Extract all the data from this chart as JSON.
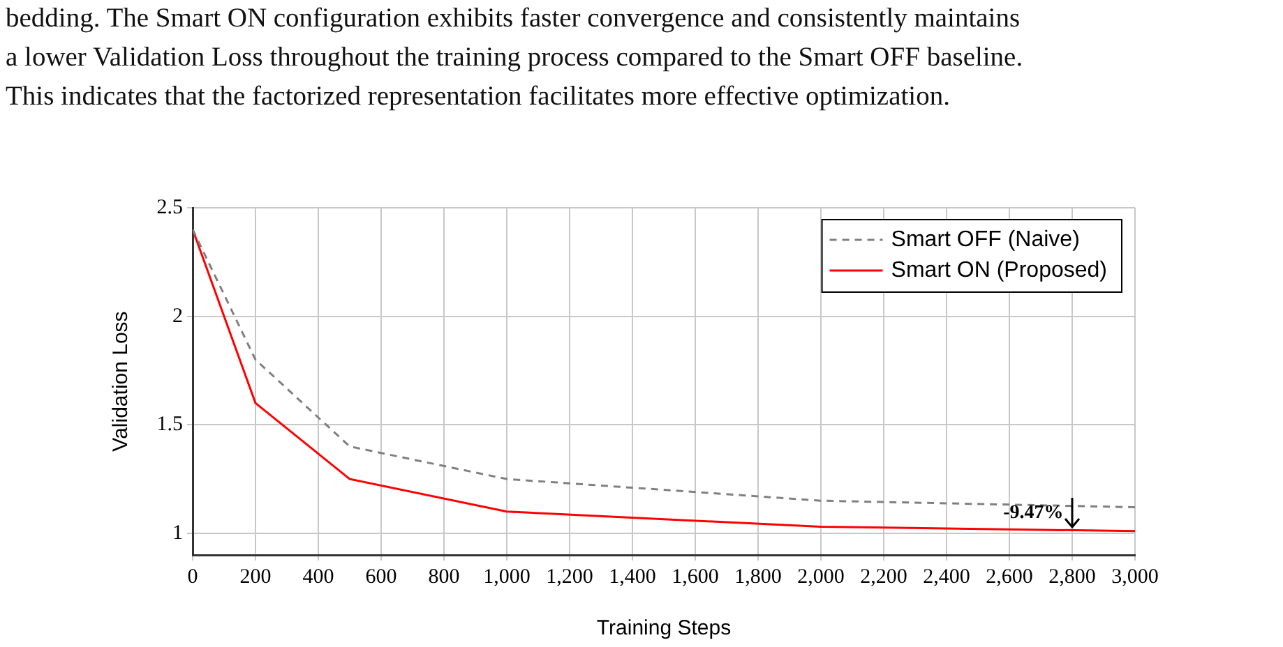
{
  "chart_data": {
    "type": "line",
    "xlabel": "Training Steps",
    "ylabel": "Validation Loss",
    "annotations": [
      "bedding. The Smart ON configuration exhibits faster convergence and consistently maintains",
      "a lower Validation Loss throughout the training process compared to the Smart OFF baseline.",
      "This indicates that the factorized representation facilitates more effective optimization.",
      "-9.47%"
    ],
    "x": [
      0,
      200,
      500,
      1000,
      2000,
      3000
    ],
    "series": [
      {
        "name": "Smart OFF (Naive)",
        "color": "#808080",
        "line_style": "dashed",
        "values": [
          2.4,
          1.8,
          1.4,
          1.25,
          1.15,
          1.12
        ]
      },
      {
        "name": "Smart ON (Proposed)",
        "color": "#ff0000",
        "line_style": "solid",
        "values": [
          2.4,
          1.6,
          1.25,
          1.1,
          1.03,
          1.01
        ]
      }
    ],
    "xlim": [
      0,
      3000
    ],
    "ylim": [
      0.9,
      2.5
    ],
    "xticks": [
      0,
      200,
      400,
      600,
      800,
      {
        "value": 1000,
        "label": "1,000"
      },
      {
        "value": 1200,
        "label": "1,200"
      },
      {
        "value": 1400,
        "label": "1,400"
      },
      {
        "value": 1600,
        "label": "1,600"
      },
      {
        "value": 1800,
        "label": "1,800"
      },
      {
        "value": 2000,
        "label": "2,000"
      },
      {
        "value": 2200,
        "label": "2,200"
      },
      {
        "value": 2400,
        "label": "2,400"
      },
      {
        "value": 2600,
        "label": "2,600"
      },
      {
        "value": 2800,
        "label": "2,800"
      },
      {
        "value": 3000,
        "label": "3,000"
      }
    ],
    "yticks": [
      1,
      1.5,
      2,
      2.5
    ],
    "grid": true,
    "legend": "top right",
    "marker": "none"
  }
}
